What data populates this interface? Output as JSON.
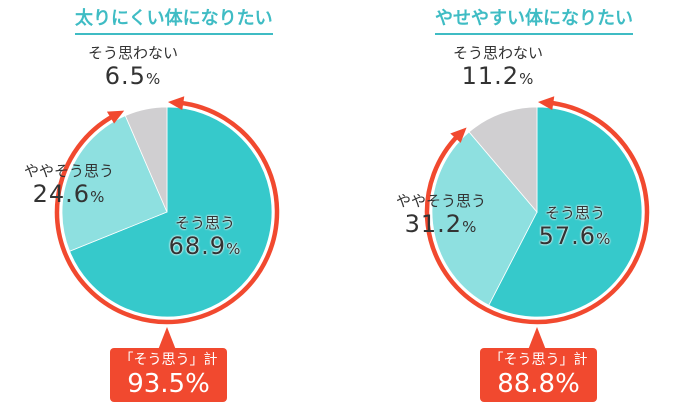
{
  "colors": {
    "agree": "#36c9cb",
    "somewhat_agree": "#8ee0e0",
    "disagree": "#d0cfd1",
    "accent_red": "#f1492f",
    "title_teal": "#3fbcc4"
  },
  "charts": [
    {
      "title": "太りにくい体になりたい",
      "labels": {
        "disagree_caption": "そう思わない",
        "disagree_value": "6.5",
        "somewhat_caption": "ややそう思う",
        "somewhat_value": "24.6",
        "agree_caption": "そう思う",
        "agree_value": "68.9",
        "percent_sign": "%"
      },
      "callout": {
        "caption": "「そう思う」計",
        "value": "93.5%"
      }
    },
    {
      "title": "やせやすい体になりたい",
      "labels": {
        "disagree_caption": "そう思わない",
        "disagree_value": "11.2",
        "somewhat_caption": "ややそう思う",
        "somewhat_value": "31.2",
        "agree_caption": "そう思う",
        "agree_value": "57.6",
        "percent_sign": "%"
      },
      "callout": {
        "caption": "「そう思う」計",
        "value": "88.8%"
      }
    }
  ],
  "chart_data": [
    {
      "type": "pie",
      "title": "太りにくい体になりたい",
      "categories": [
        "そう思う",
        "ややそう思う",
        "そう思わない"
      ],
      "values": [
        68.9,
        24.6,
        6.5
      ],
      "unit": "%",
      "annotations": [
        "「そう思う」計 93.5%"
      ],
      "start_angle": "top, clockwise"
    },
    {
      "type": "pie",
      "title": "やせやすい体になりたい",
      "categories": [
        "そう思う",
        "ややそう思う",
        "そう思わない"
      ],
      "values": [
        57.6,
        31.2,
        11.2
      ],
      "unit": "%",
      "annotations": [
        "「そう思う」計 88.8%"
      ],
      "start_angle": "top, clockwise"
    }
  ]
}
